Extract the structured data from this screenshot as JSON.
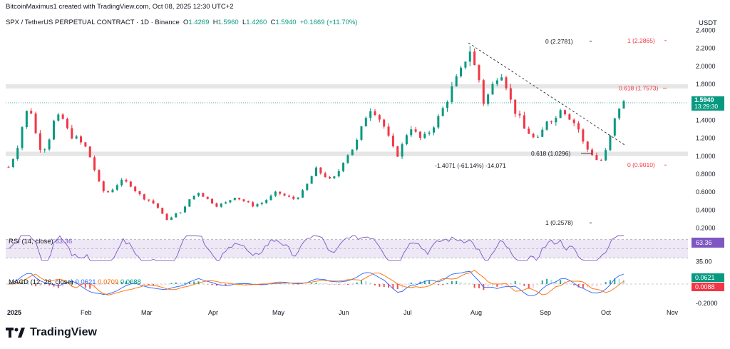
{
  "header": {
    "credit": "BitcoinMaximus1 created with TradingView.com, Oct 08, 2025 12:30 UTC+2",
    "symbol": "SPX / TetherUS PERPETUAL CONTRACT · 1D · Binance",
    "o_label": "O",
    "o_value": "1.4269",
    "h_label": "H",
    "h_value": "1.5960",
    "l_label": "L",
    "l_value": "1.4260",
    "c_label": "C",
    "c_value": "1.5940",
    "change": "+0.1669 (+11.70%)",
    "quote_currency": "USDT"
  },
  "indicators": {
    "rsi_label": "RSI (14, close)",
    "rsi_value": "63.36",
    "macd_label": "MACD (12, 26, close)",
    "macd_v1": "0.0621",
    "macd_v2": "0.0709",
    "macd_v3": "0.0088"
  },
  "logo": {
    "text": "TradingView"
  },
  "colors": {
    "up": "#089981",
    "down": "#f23645",
    "zone": "#e6e6e6",
    "price_line": "#089981",
    "rsi": "#7e57c2",
    "macd": "#2962ff",
    "signal": "#ff6d00"
  },
  "chart_data": {
    "type": "candlestick",
    "title": "SPX / TetherUS PERPETUAL CONTRACT · 1D · Binance",
    "y_axis_ticks": [
      "2.4000",
      "2.2000",
      "2.0000",
      "1.8000",
      "1.6000",
      "1.4000",
      "1.2000",
      "1.0000",
      "0.8000",
      "0.6000",
      "0.4000",
      "0.2000"
    ],
    "ylim": [
      0.18,
      2.42
    ],
    "x_axis_labels": [
      "2025",
      "Feb",
      "Mar",
      "Apr",
      "May",
      "Jun",
      "Jul",
      "Aug",
      "Sep",
      "Oct",
      "Nov"
    ],
    "last_price": "1.5940",
    "countdown": "13:29:30",
    "close_path": [
      [
        0,
        0.88
      ],
      [
        5,
        1.05
      ],
      [
        10,
        1.4
      ],
      [
        14,
        1.58
      ],
      [
        18,
        1.25
      ],
      [
        22,
        1.05
      ],
      [
        26,
        1.15
      ],
      [
        30,
        1.38
      ],
      [
        35,
        1.45
      ],
      [
        40,
        1.25
      ],
      [
        46,
        1.18
      ],
      [
        52,
        1.08
      ],
      [
        56,
        0.9
      ],
      [
        60,
        0.7
      ],
      [
        64,
        0.58
      ],
      [
        68,
        0.62
      ],
      [
        74,
        0.72
      ],
      [
        80,
        0.7
      ],
      [
        84,
        0.62
      ],
      [
        88,
        0.55
      ],
      [
        94,
        0.5
      ],
      [
        98,
        0.45
      ],
      [
        102,
        0.35
      ],
      [
        106,
        0.28
      ],
      [
        110,
        0.35
      ],
      [
        116,
        0.4
      ],
      [
        120,
        0.52
      ],
      [
        126,
        0.6
      ],
      [
        132,
        0.52
      ],
      [
        138,
        0.45
      ],
      [
        144,
        0.48
      ],
      [
        150,
        0.55
      ],
      [
        156,
        0.5
      ],
      [
        162,
        0.45
      ],
      [
        168,
        0.48
      ],
      [
        174,
        0.55
      ],
      [
        178,
        0.6
      ],
      [
        184,
        0.55
      ],
      [
        190,
        0.52
      ],
      [
        196,
        0.62
      ],
      [
        200,
        0.75
      ],
      [
        204,
        0.85
      ],
      [
        210,
        0.78
      ],
      [
        214,
        0.72
      ],
      [
        218,
        0.8
      ],
      [
        222,
        0.95
      ],
      [
        226,
        1.05
      ],
      [
        230,
        1.12
      ],
      [
        234,
        1.3
      ],
      [
        238,
        1.5
      ],
      [
        241,
        1.55
      ],
      [
        245,
        1.45
      ],
      [
        250,
        1.3
      ],
      [
        254,
        1.1
      ],
      [
        258,
        1.02
      ],
      [
        262,
        1.15
      ],
      [
        266,
        1.35
      ],
      [
        270,
        1.25
      ],
      [
        274,
        1.18
      ],
      [
        278,
        1.25
      ],
      [
        282,
        1.35
      ],
      [
        286,
        1.45
      ],
      [
        290,
        1.6
      ],
      [
        294,
        1.75
      ],
      [
        298,
        1.88
      ],
      [
        302,
        2.0
      ],
      [
        305,
        2.25
      ],
      [
        308,
        2.05
      ],
      [
        312,
        1.85
      ],
      [
        315,
        1.6
      ],
      [
        318,
        1.68
      ],
      [
        322,
        1.82
      ],
      [
        326,
        1.98
      ],
      [
        330,
        1.8
      ],
      [
        334,
        1.55
      ],
      [
        338,
        1.45
      ],
      [
        342,
        1.3
      ],
      [
        346,
        1.25
      ],
      [
        350,
        1.15
      ],
      [
        354,
        1.28
      ],
      [
        358,
        1.45
      ],
      [
        362,
        1.38
      ],
      [
        366,
        1.55
      ],
      [
        370,
        1.48
      ],
      [
        374,
        1.4
      ],
      [
        378,
        1.3
      ],
      [
        382,
        1.1
      ],
      [
        386,
        1.05
      ],
      [
        390,
        0.96
      ],
      [
        394,
        0.95
      ],
      [
        398,
        1.15
      ],
      [
        402,
        1.4
      ],
      [
        405,
        1.55
      ],
      [
        408,
        1.59
      ]
    ],
    "levels": [
      {
        "label": "0 (2.2781)",
        "value": 2.2781,
        "color": "#131722"
      },
      {
        "label": "1 (2.2865)",
        "value": 2.2865,
        "color": "#f23645"
      },
      {
        "label": "0.618 (1.7573)",
        "value": 1.7573,
        "color": "#f23645"
      },
      {
        "label": "0.618 (1.0296)",
        "value": 1.0296,
        "color": "#131722"
      },
      {
        "label": "0 (0.9010)",
        "value": 0.901,
        "color": "#f23645"
      },
      {
        "label": "1 (0.2578)",
        "value": 0.2578,
        "color": "#131722"
      }
    ],
    "zones": [
      [
        1.7573,
        1.8
      ],
      [
        1.0,
        1.05
      ]
    ],
    "measure_label": "-1.4071 (-61.14%) -14,071",
    "rsi": {
      "ticks": [
        "35.00"
      ],
      "upper": 70,
      "mid": 50,
      "lower": 30,
      "last": 63.36
    },
    "macd": {
      "zero_label": "-0.2000",
      "last_macd": 0.0621,
      "last_hist": 0.0088
    }
  }
}
